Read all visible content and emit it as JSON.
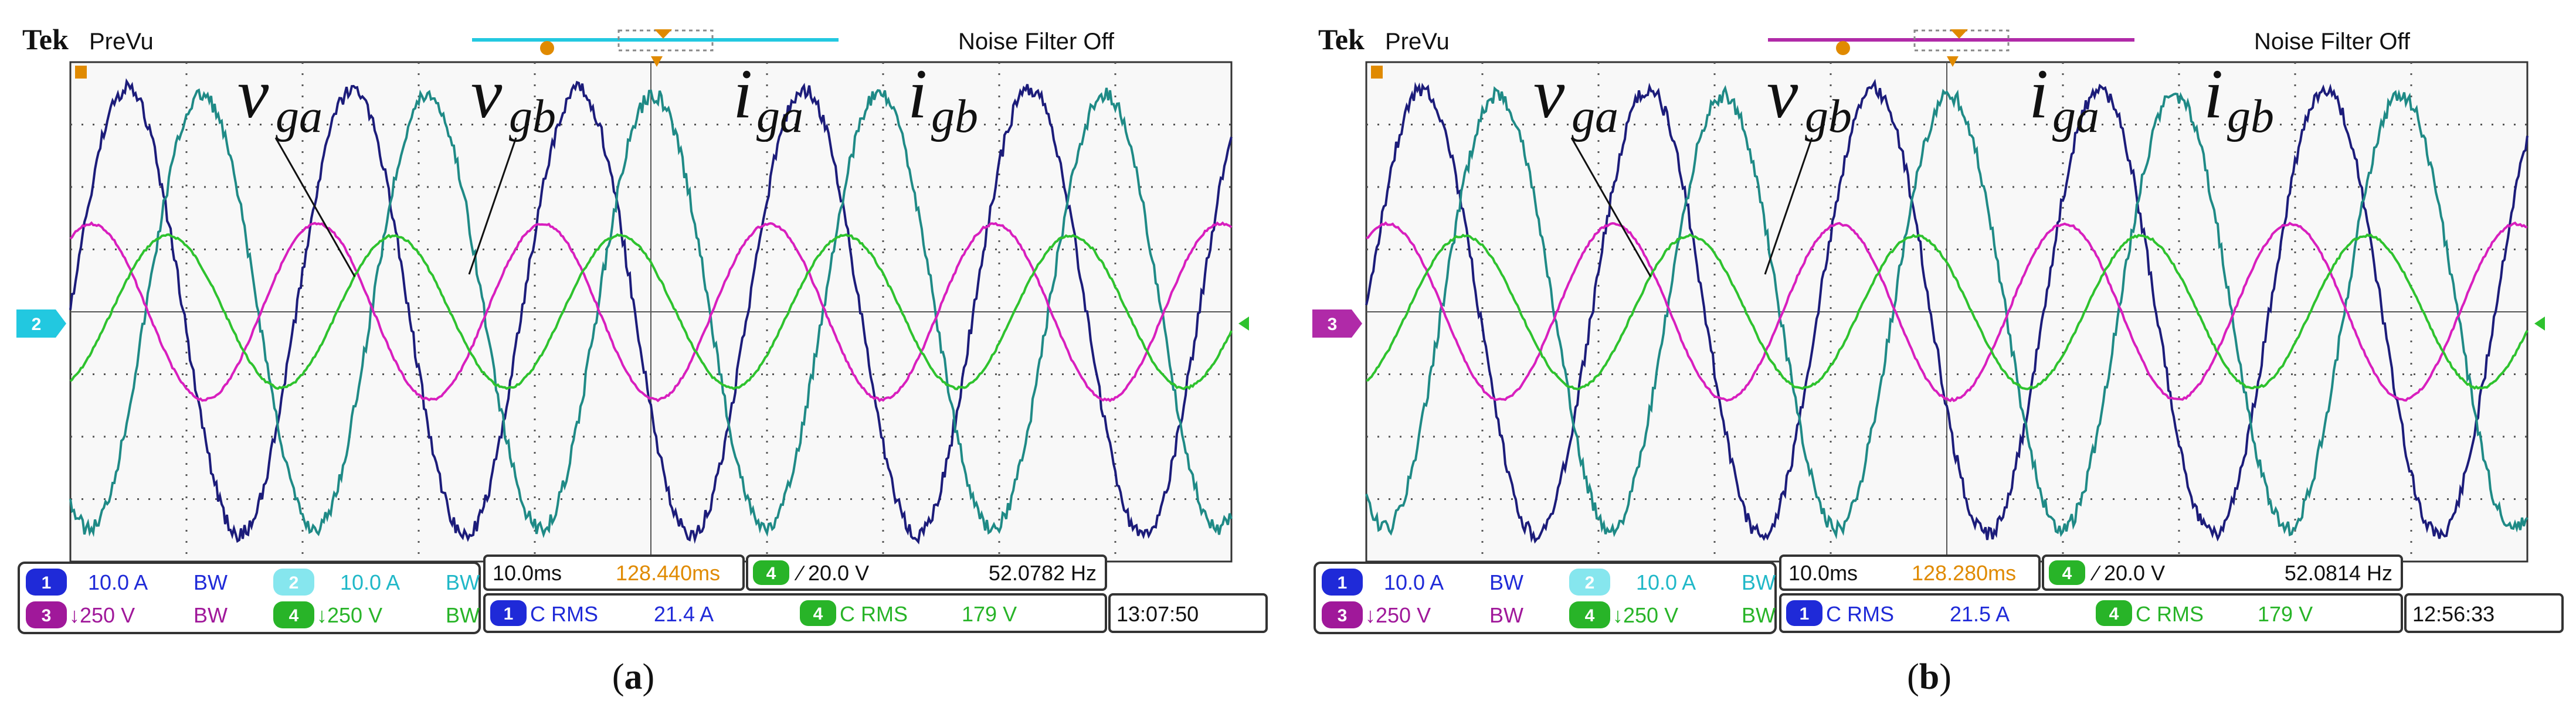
{
  "colors": {
    "ch1": "#1c1c7a",
    "ch2": "#1f8a86",
    "ch3": "#d81fbe",
    "ch4": "#2ec22e",
    "grid": "#555555",
    "screen_bg": "#f8f8f8",
    "readout_orange": "#e08a00"
  },
  "panels": [
    {
      "id": "a",
      "caption_label": "a",
      "brand": "Tek",
      "mode": "PreVu",
      "filter_status": "Noise Filter Off",
      "record_color": "#22c8e0",
      "marker_channel": "2",
      "marker_color": "#22c8e0",
      "wave_labels": {
        "vga": {
          "base": "v",
          "sub": "ga"
        },
        "vgb": {
          "base": "v",
          "sub": "gb"
        },
        "iga": {
          "base": "i",
          "sub": "ga"
        },
        "igb": {
          "base": "i",
          "sub": "gb"
        }
      },
      "channels": [
        {
          "num": "1",
          "scale": "10.0 A",
          "bw": "BW"
        },
        {
          "num": "2",
          "scale": "10.0 A",
          "bw": "BW"
        },
        {
          "num": "3",
          "scale": "↓250 V",
          "bw": "BW"
        },
        {
          "num": "4",
          "scale": "↓250 V",
          "bw": "BW"
        }
      ],
      "timebase": "10.0ms",
      "trigger_position": "128.440ms",
      "trigger_channel": "4",
      "trigger_level": "∕ 20.0 V",
      "frequency": "52.0782 Hz",
      "measurements": [
        {
          "channel": "1",
          "label": "C RMS",
          "value": "21.4 A"
        },
        {
          "channel": "4",
          "label": "C RMS",
          "value": "179 V"
        }
      ],
      "clock": "13:07:50"
    },
    {
      "id": "b",
      "caption_label": "b",
      "brand": "Tek",
      "mode": "PreVu",
      "filter_status": "Noise Filter Off",
      "record_color": "#b02aa8",
      "marker_channel": "3",
      "marker_color": "#b02aa8",
      "wave_labels": {
        "vga": {
          "base": "v",
          "sub": "ga"
        },
        "vgb": {
          "base": "v",
          "sub": "gb"
        },
        "iga": {
          "base": "i",
          "sub": "ga"
        },
        "igb": {
          "base": "i",
          "sub": "gb"
        }
      },
      "channels": [
        {
          "num": "1",
          "scale": "10.0 A",
          "bw": "BW"
        },
        {
          "num": "2",
          "scale": "10.0 A",
          "bw": "BW"
        },
        {
          "num": "3",
          "scale": "↓250 V",
          "bw": "BW"
        },
        {
          "num": "4",
          "scale": "↓250 V",
          "bw": "BW"
        }
      ],
      "timebase": "10.0ms",
      "trigger_position": "128.280ms",
      "trigger_channel": "4",
      "trigger_level": "∕ 20.0 V",
      "frequency": "52.0814 Hz",
      "measurements": [
        {
          "channel": "1",
          "label": "C RMS",
          "value": "21.5 A"
        },
        {
          "channel": "4",
          "label": "C RMS",
          "value": "179 V"
        }
      ],
      "clock": "12:56:33"
    }
  ]
}
